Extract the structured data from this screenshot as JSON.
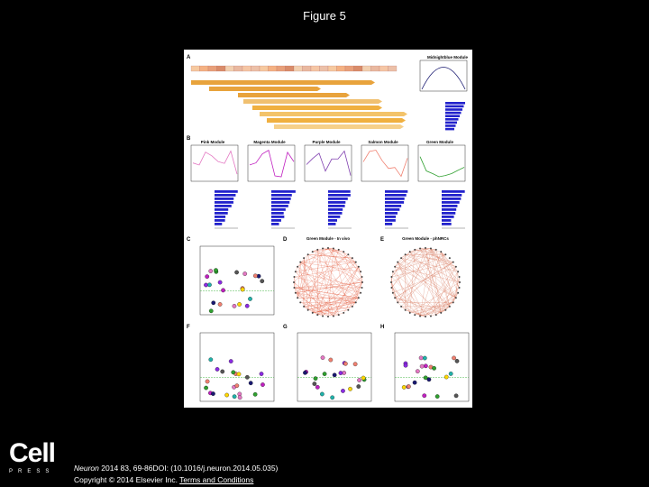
{
  "header": {
    "title": "Figure 5"
  },
  "figure": {
    "panels": [
      "A",
      "B",
      "C",
      "D",
      "E",
      "F",
      "G",
      "H"
    ],
    "modules": [
      "Pink Module",
      "Magenta Module",
      "Purple Module",
      "Salmon Module",
      "Green Module"
    ],
    "side_module": "Midnightblue Module",
    "networks": [
      "Green Module - In vivo",
      "Green Module - phNRCs"
    ]
  },
  "logo": {
    "name": "Cell",
    "sub": "PRESS"
  },
  "footer": {
    "journal": "Neuron",
    "citation": "2014 83, 69-86DOI: (10.1016/j.neuron.2014.05.035)",
    "copyright": "Copyright © 2014 Elsevier Inc.",
    "link": "Terms and Conditions"
  }
}
